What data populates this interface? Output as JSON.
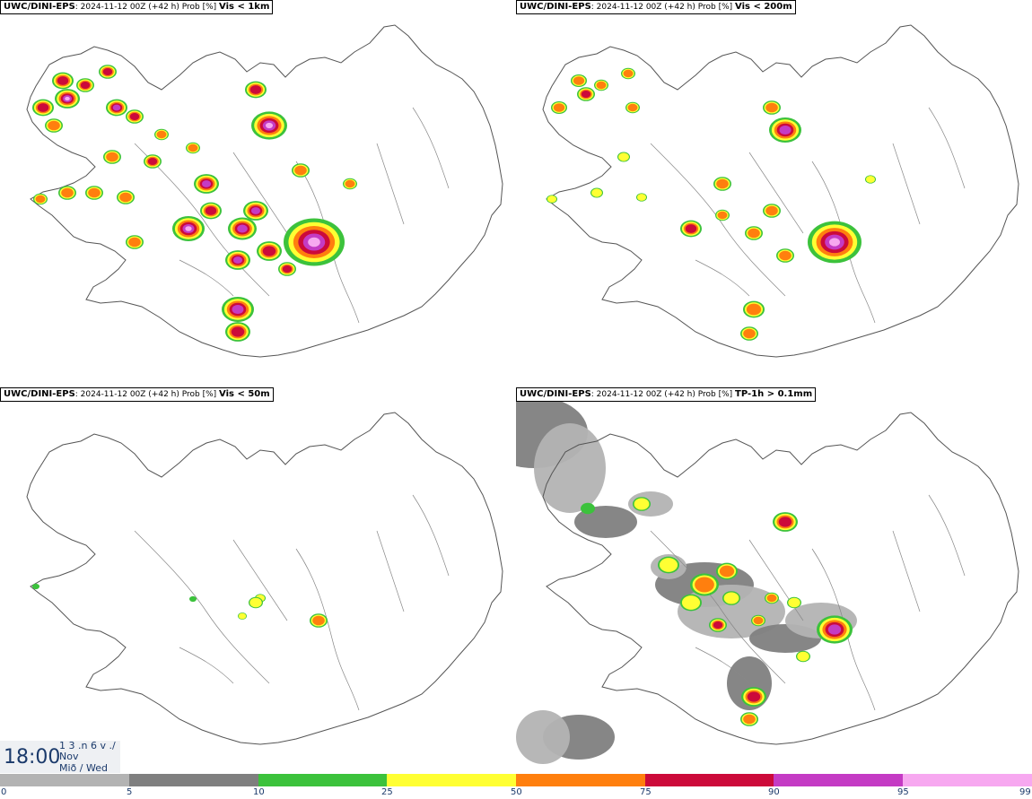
{
  "panels": [
    {
      "source": "UWC/DINI-EPS",
      "meta": ": 2024-11-12 00Z (+42 h) Prob [%]",
      "variable": "Vis < 1km"
    },
    {
      "source": "UWC/DINI-EPS",
      "meta": ": 2024-11-12 00Z (+42 h) Prob [%]",
      "variable": "Vis < 200m"
    },
    {
      "source": "UWC/DINI-EPS",
      "meta": ": 2024-11-12 00Z (+42 h) Prob [%]",
      "variable": "Vis < 50m"
    },
    {
      "source": "UWC/DINI-EPS",
      "meta": ": 2024-11-12 00Z (+42 h) Prob [%]",
      "variable": "TP-1h > 0.1mm"
    }
  ],
  "clock": {
    "time": "18:00",
    "line1": "1 3 .n 6 v ./",
    "line2": "Nov",
    "line3": "Mið / Wed"
  },
  "legend": {
    "ticks": [
      "0",
      "5",
      "10",
      "25",
      "50",
      "75",
      "90",
      "95",
      "99"
    ],
    "colors": [
      "#ffffff",
      "#b3b3b3",
      "#7f7f7f",
      "#3cc23c",
      "#ffff33",
      "#ff7f0e",
      "#cc0a3a",
      "#c43bc4",
      "#f7a8f0"
    ]
  }
}
